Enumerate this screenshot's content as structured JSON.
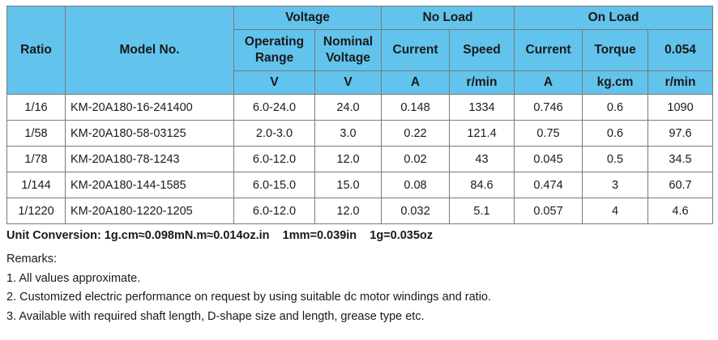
{
  "table": {
    "headers": {
      "ratio": "Ratio",
      "model": "Model No.",
      "voltage": "Voltage",
      "no_load": "No Load",
      "on_load": "On Load",
      "operating_range": [
        "Operating",
        "Range"
      ],
      "nominal_voltage": [
        "Nominal",
        "Voltage"
      ],
      "nl_current": "Current",
      "nl_speed": "Speed",
      "ol_current": "Current",
      "ol_torque": "Torque",
      "ol_last": "0.054"
    },
    "units": [
      "V",
      "V",
      "A",
      "r/min",
      "A",
      "kg.cm",
      "r/min"
    ],
    "rows": [
      [
        "1/16",
        "KM-20A180-16-241400",
        "6.0-24.0",
        "24.0",
        "0.148",
        "1334",
        "0.746",
        "0.6",
        "1090"
      ],
      [
        "1/58",
        "KM-20A180-58-03125",
        "2.0-3.0",
        "3.0",
        "0.22",
        "121.4",
        "0.75",
        "0.6",
        "97.6"
      ],
      [
        "1/78",
        "KM-20A180-78-1243",
        "6.0-12.0",
        "12.0",
        "0.02",
        "43",
        "0.045",
        "0.5",
        "34.5"
      ],
      [
        "1/144",
        "KM-20A180-144-1585",
        "6.0-15.0",
        "15.0",
        "0.08",
        "84.6",
        "0.474",
        "3",
        "60.7"
      ],
      [
        "1/1220",
        "KM-20A180-1220-1205",
        "6.0-12.0",
        "12.0",
        "0.032",
        "5.1",
        "0.057",
        "4",
        "4.6"
      ]
    ]
  },
  "conversion": "Unit Conversion: 1g.cm≈0.098mN.m≈0.014oz.in    1mm=0.039in    1g=0.035oz",
  "remarks": {
    "title": "Remarks:",
    "items": [
      "1. All values approximate.",
      "2. Customized electric performance on request by using suitable dc motor windings and ratio.",
      "3. Available with required shaft length, D-shape size and length, grease type etc."
    ]
  },
  "colors": {
    "header_bg": "#62c3ec",
    "border": "#7a7a7a"
  }
}
